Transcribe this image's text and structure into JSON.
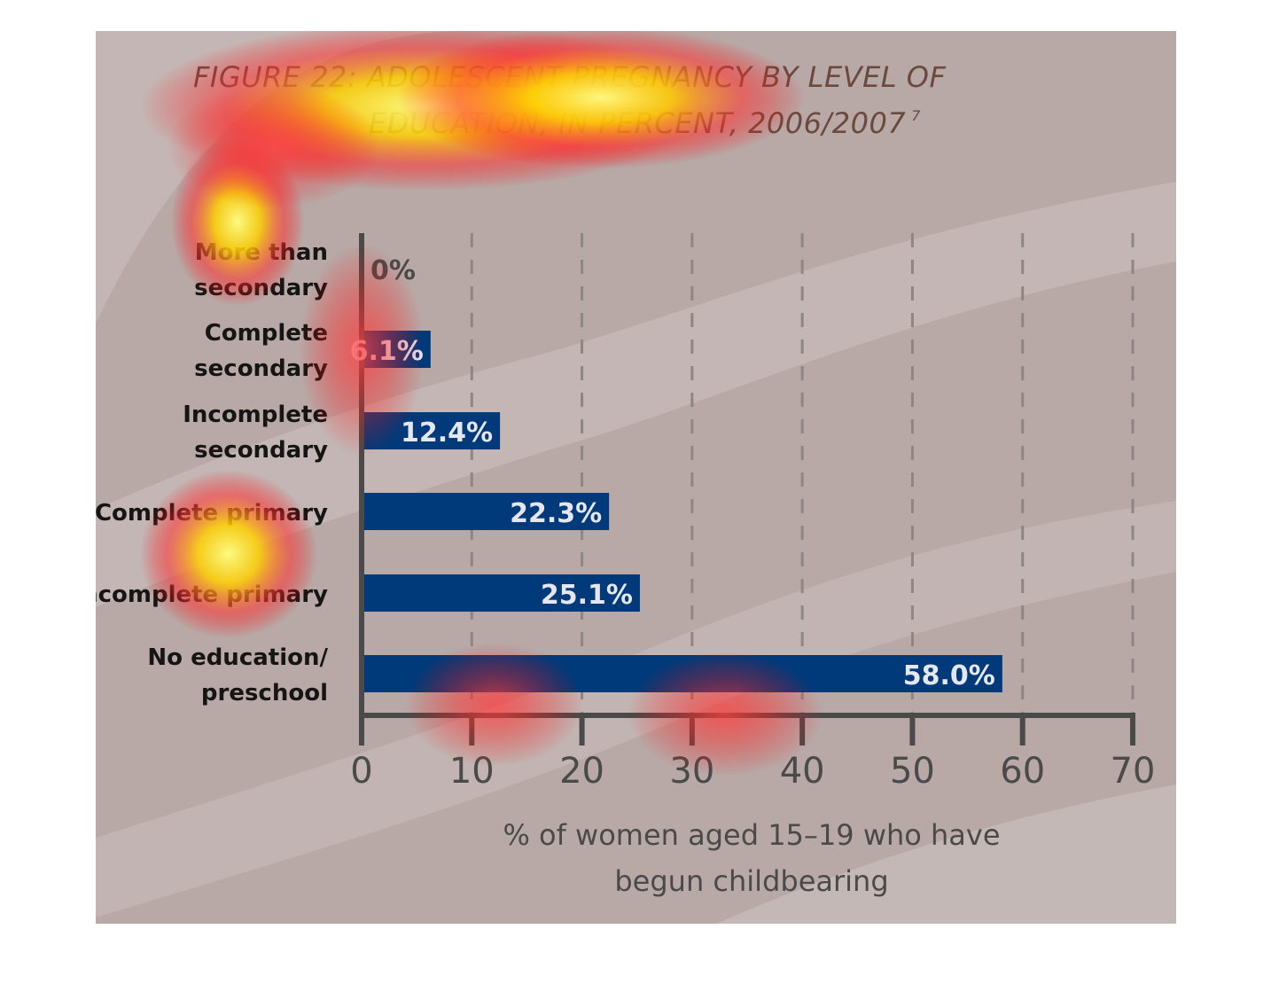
{
  "chart_data": {
    "type": "bar",
    "orientation": "horizontal",
    "title_line_1": "FIGURE 22: ADOLESCENT PREGNANCY BY LEVEL OF",
    "title_line_2": "EDUCATION, IN PERCENT, 2006/2007",
    "title_footnote": "7",
    "categories": [
      [
        "More than",
        "secondary"
      ],
      [
        "Complete",
        "secondary"
      ],
      [
        "Incomplete",
        "secondary"
      ],
      [
        "Complete primary"
      ],
      [
        "Incomplete primary"
      ],
      [
        "No education/",
        "preschool"
      ]
    ],
    "values": [
      0,
      6.1,
      12.4,
      22.3,
      25.1,
      58.0
    ],
    "value_labels": [
      "0%",
      "6.1%",
      "12.4%",
      "22.3%",
      "25.1%",
      "58.0%"
    ],
    "xlabel_lines": [
      "% of women aged 15–19 who have",
      "begun childbearing"
    ],
    "xlim": [
      0,
      70
    ],
    "xticks": [
      0,
      10,
      20,
      30,
      40,
      50,
      60,
      70
    ],
    "grid": "vertical dashed",
    "colors": {
      "bar": "#003a7a",
      "bar_label": "#e6e6ee",
      "axis": "#4a4a4a",
      "background": "#b8a8a6",
      "title": "#6b4a3e"
    }
  }
}
